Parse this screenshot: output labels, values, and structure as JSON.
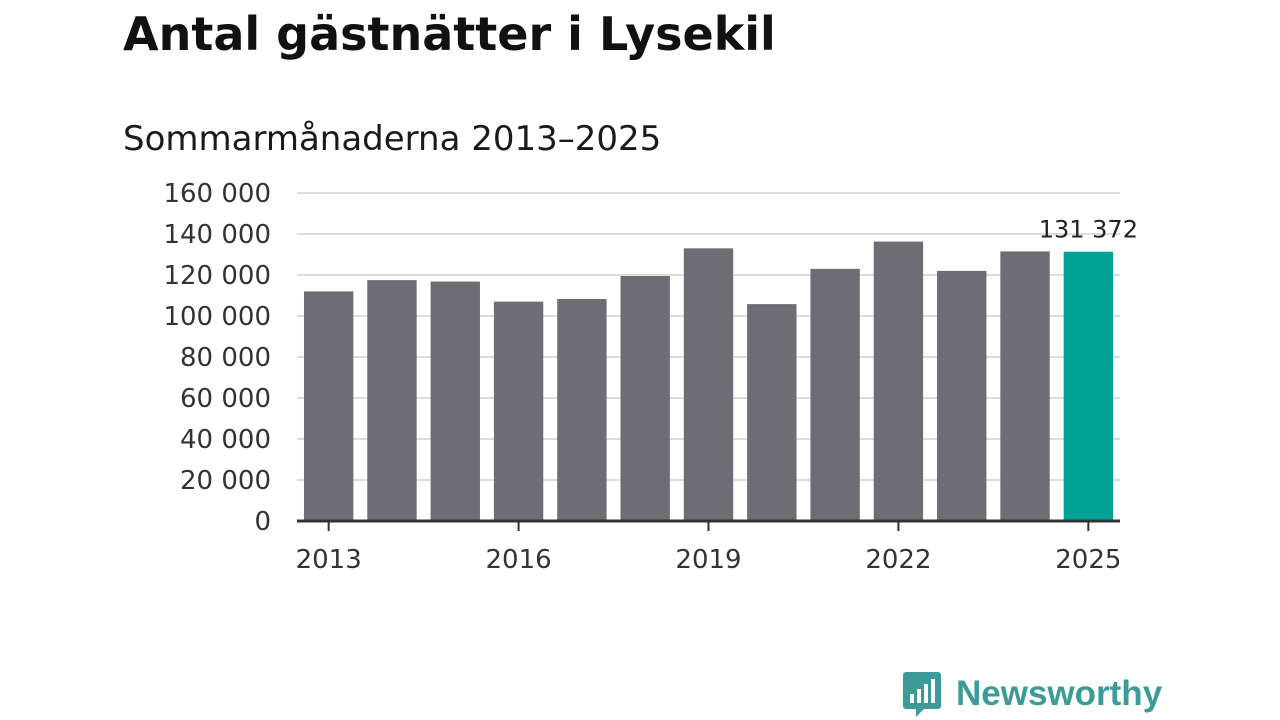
{
  "header": {
    "title": "Antal gästnätter i Lysekil",
    "subtitle": "Sommarmånaderna 2013–2025"
  },
  "brand": {
    "name": "Newsworthy",
    "color": "#3d9b97",
    "icon": "bar-chart-speech-bubble-icon"
  },
  "colors": {
    "bar": "#6e6d73",
    "highlight": "#00a295",
    "grid": "#dddddd",
    "axis": "#333333"
  },
  "chart_data": {
    "type": "bar",
    "title": "Antal gästnätter i Lysekil",
    "subtitle": "Sommarmånaderna 2013–2025",
    "categories": [
      "2013",
      "2014",
      "2015",
      "2016",
      "2017",
      "2018",
      "2019",
      "2020",
      "2021",
      "2022",
      "2023",
      "2024",
      "2025"
    ],
    "values": [
      112000,
      117500,
      116800,
      107000,
      108300,
      119500,
      133000,
      105800,
      123000,
      136300,
      122000,
      131500,
      131372
    ],
    "highlight_index": 12,
    "x_tick_labels": [
      "2013",
      "2016",
      "2019",
      "2022",
      "2025"
    ],
    "x_tick_indices": [
      0,
      3,
      6,
      9,
      12
    ],
    "y_tick_values": [
      0,
      20000,
      40000,
      60000,
      80000,
      100000,
      120000,
      140000,
      160000
    ],
    "y_tick_labels": [
      "0",
      "20 000",
      "40 000",
      "60 000",
      "80 000",
      "100 000",
      "120 000",
      "140 000",
      "160 000"
    ],
    "ylim": [
      0,
      160000
    ],
    "grid": true,
    "data_labels": [
      {
        "index": 12,
        "text": "131 372"
      }
    ]
  }
}
